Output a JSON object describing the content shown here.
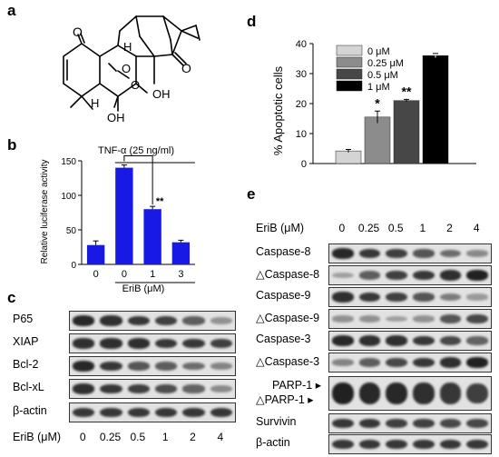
{
  "panels": {
    "a": {
      "letter": "a"
    },
    "b": {
      "letter": "b"
    },
    "c": {
      "letter": "c"
    },
    "d": {
      "letter": "d"
    },
    "e": {
      "letter": "e"
    }
  },
  "structure_atoms": {
    "o1": "O",
    "o2": "O",
    "o3": "O",
    "o4": "O",
    "h1": "H",
    "h2": "H",
    "oh1": "OH",
    "oh2": "OH"
  },
  "chart_b": {
    "type": "bar",
    "title": "TNF-α (25 ng/ml)",
    "ylabel": "Relative luciferase activity",
    "xlabel": "EriB (μM)",
    "categories": [
      "0",
      "0",
      "1",
      "3"
    ],
    "values": [
      28,
      140,
      80,
      32
    ],
    "errors": [
      6,
      4,
      4,
      3
    ],
    "ylim": [
      0,
      150
    ],
    "yticks": [
      0,
      50,
      100,
      150
    ],
    "bar_color": "#1919e6",
    "significance": "**"
  },
  "chart_d": {
    "type": "bar",
    "ylabel": "% Apoptotic cells",
    "legend": [
      "0 μM",
      "0.25 μM",
      "0.5 μM",
      "1 μM"
    ],
    "legend_position": "top-left",
    "values": [
      4.2,
      15.5,
      21,
      36
    ],
    "errors": [
      0.5,
      2,
      0.4,
      0.7
    ],
    "colors": [
      "#d4d4d4",
      "#8c8c8c",
      "#474747",
      "#000000"
    ],
    "ylim": [
      0,
      40
    ],
    "yticks": [
      0,
      10,
      20,
      30,
      40
    ],
    "annotations": [
      "",
      "*",
      "**",
      ""
    ]
  },
  "blot_c": {
    "rows": [
      "P65",
      "XIAP",
      "Bcl-2",
      "Bcl-xL",
      "β-actin"
    ],
    "lane_title": "EriB (μM)",
    "lanes": [
      "0",
      "0.25",
      "0.5",
      "1",
      "2",
      "4"
    ]
  },
  "blot_e": {
    "lane_title": "EriB (μM)",
    "lanes": [
      "0",
      "0.25",
      "0.5",
      "1",
      "2",
      "4"
    ],
    "rows": [
      "Caspase-8",
      "△Caspase-8",
      "Caspase-9",
      "△Caspase-9",
      "Caspase-3",
      "△Caspase-3",
      "PARP-1",
      "△PARP-1",
      "Survivin",
      "β-actin"
    ]
  }
}
